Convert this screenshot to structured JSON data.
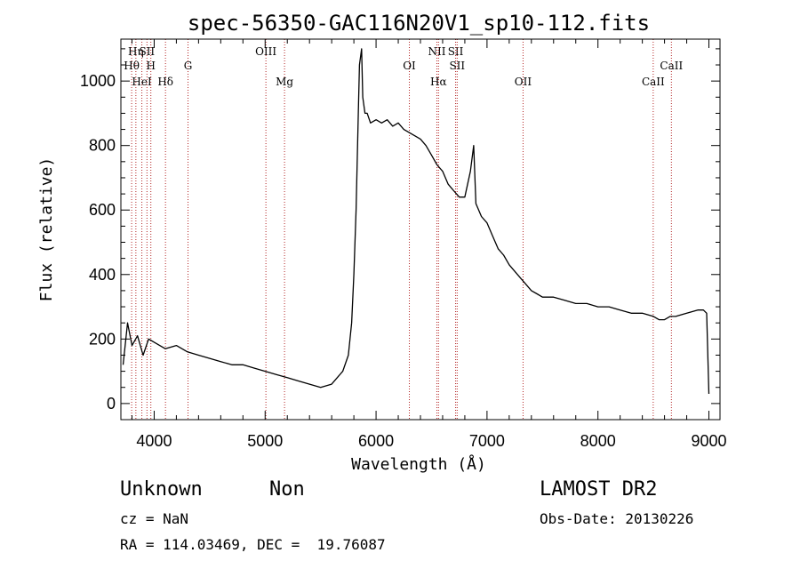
{
  "chart_data": {
    "type": "line",
    "title": "spec-56350-GAC116N20V1_sp10-112.fits",
    "xlabel": "Wavelength (Å)",
    "ylabel": "Flux (relative)",
    "xlim": [
      3700,
      9100
    ],
    "ylim": [
      -50,
      1130
    ],
    "xticks": [
      4000,
      5000,
      6000,
      7000,
      8000,
      9000
    ],
    "yticks": [
      0,
      200,
      400,
      600,
      800,
      1000
    ],
    "grid": false,
    "series_color": "#000000",
    "line_marker_color": "#b22222",
    "series": [
      {
        "x": [
          3720,
          3760,
          3800,
          3850,
          3900,
          3950,
          4000,
          4100,
          4200,
          4300,
          4400,
          4500,
          4600,
          4700,
          4800,
          4900,
          5000,
          5100,
          5200,
          5300,
          5400,
          5500,
          5600,
          5700,
          5750,
          5780,
          5800,
          5820,
          5840,
          5850,
          5870,
          5880,
          5900,
          5920,
          5950,
          6000,
          6050,
          6100,
          6150,
          6200,
          6250,
          6300,
          6350,
          6400,
          6450,
          6500,
          6550,
          6600,
          6650,
          6700,
          6750,
          6800,
          6850,
          6880,
          6900,
          6950,
          7000,
          7050,
          7100,
          7150,
          7200,
          7250,
          7300,
          7350,
          7400,
          7450,
          7500,
          7600,
          7700,
          7800,
          7900,
          8000,
          8100,
          8200,
          8300,
          8400,
          8500,
          8550,
          8600,
          8650,
          8700,
          8800,
          8900,
          8950,
          8980,
          9000
        ],
        "y": [
          120,
          250,
          180,
          210,
          150,
          200,
          190,
          170,
          180,
          160,
          150,
          140,
          130,
          120,
          120,
          110,
          100,
          90,
          80,
          70,
          60,
          50,
          60,
          100,
          150,
          250,
          400,
          600,
          900,
          1050,
          1100,
          950,
          900,
          900,
          870,
          880,
          870,
          880,
          860,
          870,
          850,
          840,
          830,
          820,
          800,
          770,
          740,
          720,
          680,
          660,
          640,
          640,
          720,
          800,
          620,
          580,
          560,
          520,
          480,
          460,
          430,
          410,
          390,
          370,
          350,
          340,
          330,
          330,
          320,
          310,
          310,
          300,
          300,
          290,
          280,
          280,
          270,
          260,
          260,
          270,
          270,
          280,
          290,
          290,
          280,
          30
        ]
      }
    ],
    "lines": [
      {
        "label": "Hη",
        "x": 3835,
        "row": 1
      },
      {
        "label": "Hθ",
        "x": 3797,
        "row": 2
      },
      {
        "label": "HeI",
        "x": 3889,
        "row": 3
      },
      {
        "label": "SII",
        "x": 3935,
        "row": 1
      },
      {
        "label": "H",
        "x": 3970,
        "row": 2
      },
      {
        "label": "Hδ",
        "x": 4102,
        "row": 3
      },
      {
        "label": "G",
        "x": 4305,
        "row": 2
      },
      {
        "label": "OIII",
        "x": 5007,
        "row": 1
      },
      {
        "label": "Mg",
        "x": 5175,
        "row": 3
      },
      {
        "label": "OI",
        "x": 6300,
        "row": 2
      },
      {
        "label": "NII",
        "x": 6548,
        "row": 1
      },
      {
        "label": "Hα",
        "x": 6563,
        "row": 3
      },
      {
        "label": "SII",
        "x": 6717,
        "row": 1
      },
      {
        "label": "SII",
        "x": 6731,
        "row": 2
      },
      {
        "label": "OII",
        "x": 7325,
        "row": 3
      },
      {
        "label": "CaII",
        "x": 8498,
        "row": 3
      },
      {
        "label": "CaII",
        "x": 8662,
        "row": 2
      }
    ]
  },
  "info": {
    "class": "Unknown",
    "subclass": "Non",
    "survey": "LAMOST DR2",
    "cz": "cz = NaN",
    "obs_date": "Obs-Date: 20130226",
    "radec": "RA = 114.03469, DEC =  19.76087"
  }
}
